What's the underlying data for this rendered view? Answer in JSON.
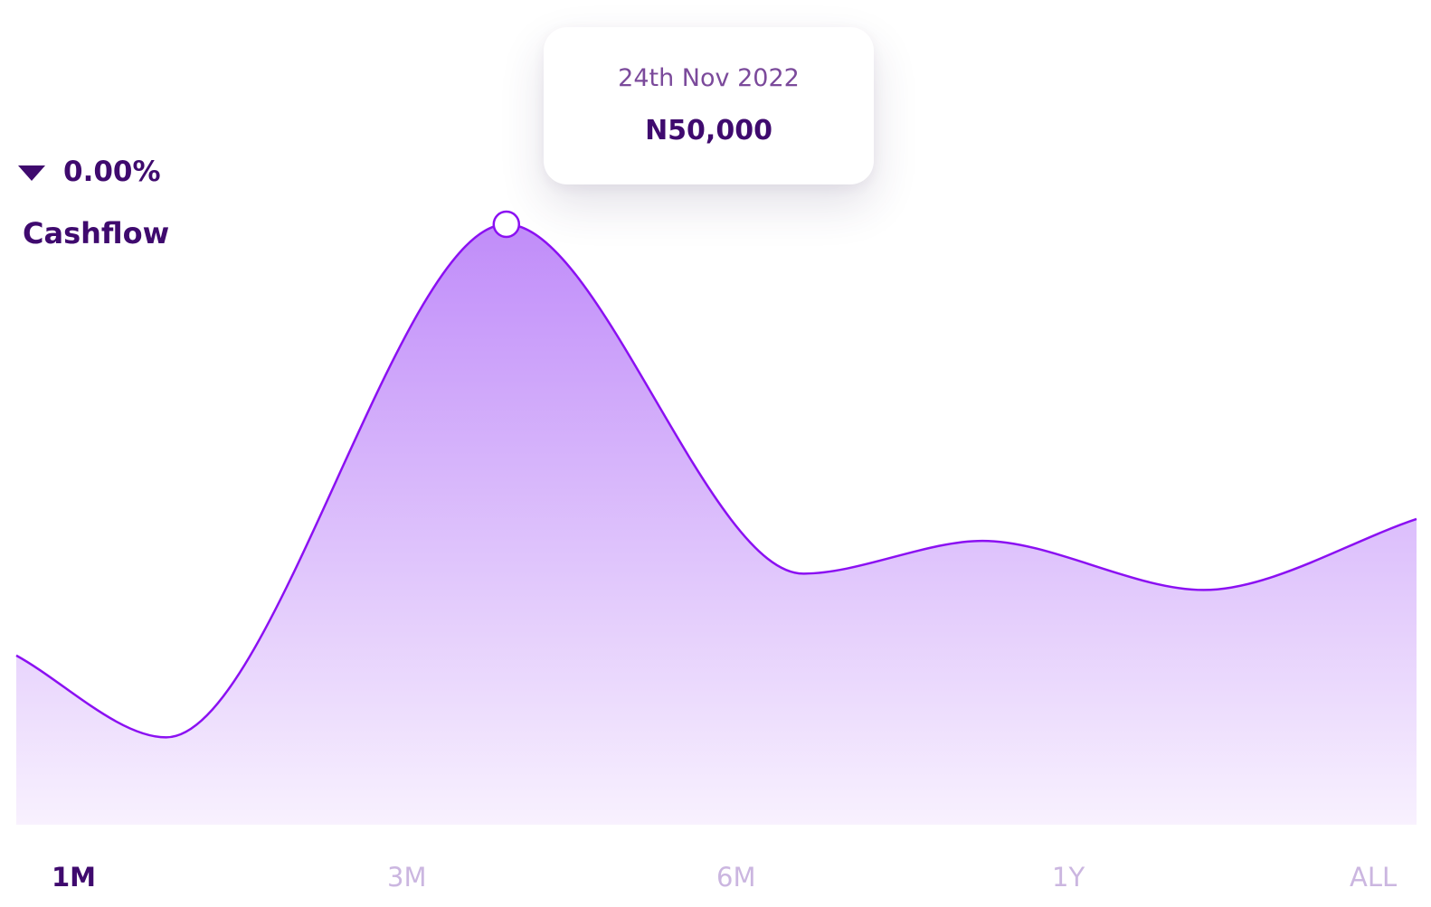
{
  "header": {
    "change_value": "0.00%",
    "title": "Cashflow"
  },
  "tooltip": {
    "date": "24th Nov 2022",
    "value": "N50,000"
  },
  "ranges": [
    {
      "label": "1M",
      "active": true
    },
    {
      "label": "3M",
      "active": false
    },
    {
      "label": "6M",
      "active": false
    },
    {
      "label": "1Y",
      "active": false
    },
    {
      "label": "ALL",
      "active": false
    }
  ],
  "colors": {
    "accent": "#8b10f2",
    "text_dark": "#3f0a6e",
    "inactive_range": "#cbb6e0",
    "fill_top": "#c08cf9",
    "fill_bottom": "#f8f1fe"
  },
  "chart_data": {
    "type": "area",
    "title": "Cashflow",
    "xlabel": "",
    "ylabel": "",
    "x": [
      0,
      0.107,
      0.35,
      0.562,
      0.69,
      0.848,
      1.0
    ],
    "values": [
      10500,
      3000,
      50000,
      18000,
      21000,
      16500,
      23000
    ],
    "ylim": [
      -5000,
      55000
    ],
    "highlight_index": 2,
    "grid": false,
    "legend": "none"
  }
}
